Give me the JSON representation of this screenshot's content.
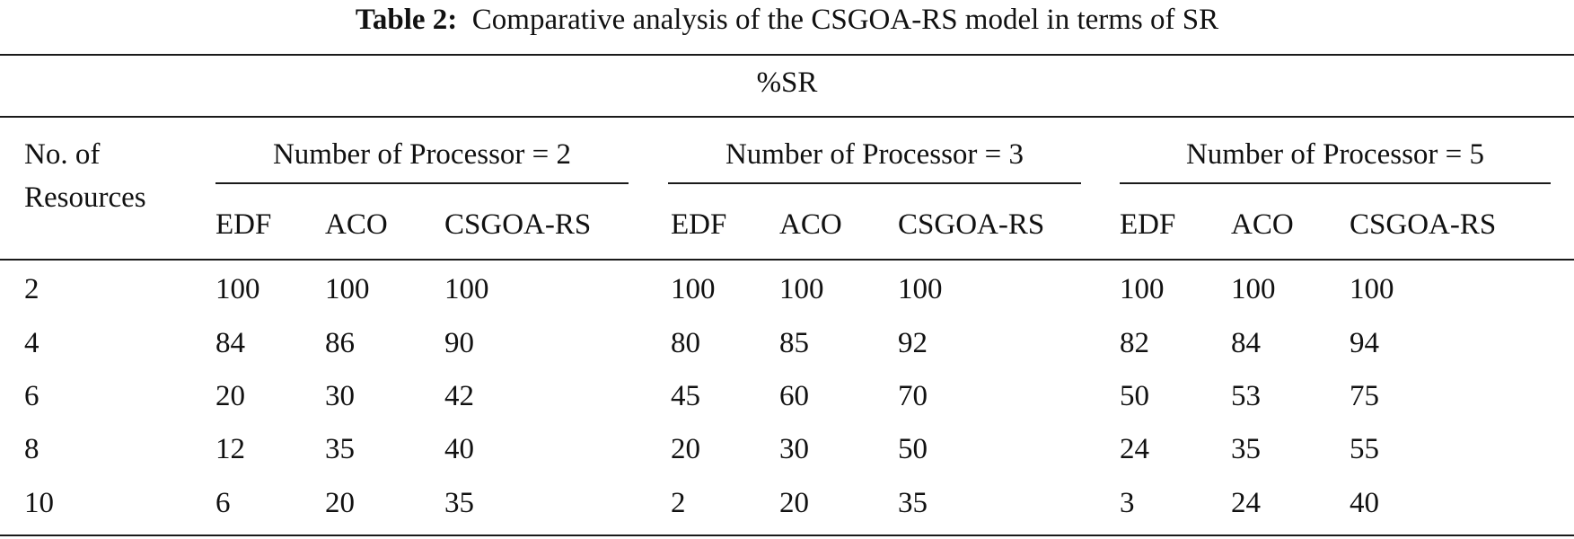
{
  "caption": {
    "label": "Table 2:",
    "text": "Comparative analysis of the CSGOA-RS model in terms of SR"
  },
  "table": {
    "super_header": "%SR",
    "row_header": [
      "No. of",
      "Resources"
    ],
    "groups": [
      {
        "label": "Number of Processor = 2",
        "columns": [
          "EDF",
          "ACO",
          "CSGOA-RS"
        ]
      },
      {
        "label": "Number of Processor = 3",
        "columns": [
          "EDF",
          "ACO",
          "CSGOA-RS"
        ]
      },
      {
        "label": "Number of Processor = 5",
        "columns": [
          "EDF",
          "ACO",
          "CSGOA-RS"
        ]
      }
    ],
    "rows": [
      {
        "resources": "2",
        "values": [
          "100",
          "100",
          "100",
          "100",
          "100",
          "100",
          "100",
          "100",
          "100"
        ]
      },
      {
        "resources": "4",
        "values": [
          "84",
          "86",
          "90",
          "80",
          "85",
          "92",
          "82",
          "84",
          "94"
        ]
      },
      {
        "resources": "6",
        "values": [
          "20",
          "30",
          "42",
          "45",
          "60",
          "70",
          "50",
          "53",
          "75"
        ]
      },
      {
        "resources": "8",
        "values": [
          "12",
          "35",
          "40",
          "20",
          "30",
          "50",
          "24",
          "35",
          "55"
        ]
      },
      {
        "resources": "10",
        "values": [
          "6",
          "20",
          "35",
          "2",
          "20",
          "35",
          "3",
          "24",
          "40"
        ]
      }
    ]
  }
}
